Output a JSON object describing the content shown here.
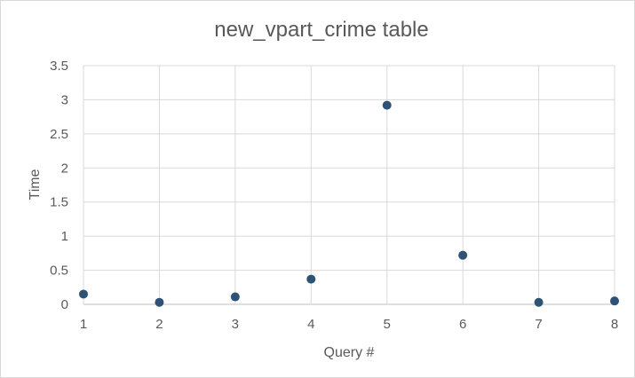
{
  "chart_data": {
    "type": "scatter",
    "title": "new_vpart_crime table",
    "xlabel": "Query #",
    "ylabel": "Time",
    "xlim": [
      1,
      8
    ],
    "ylim": [
      0,
      3.5
    ],
    "x_ticks": [
      "1",
      "2",
      "3",
      "4",
      "5",
      "6",
      "7",
      "8"
    ],
    "y_ticks": [
      "0",
      "0.5",
      "1",
      "1.5",
      "2",
      "2.5",
      "3",
      "3.5"
    ],
    "grid": true,
    "legend": "none",
    "marker_color": "#2e5276",
    "series": [
      {
        "x": [
          1,
          2,
          3,
          4,
          5,
          6,
          7,
          8
        ],
        "y": [
          0.15,
          0.03,
          0.11,
          0.37,
          2.92,
          0.72,
          0.03,
          0.05
        ]
      }
    ]
  }
}
